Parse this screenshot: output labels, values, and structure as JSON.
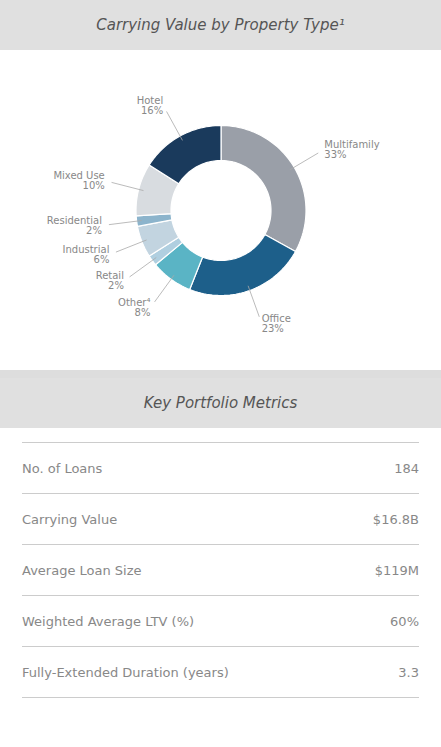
{
  "chart_data": [
    {
      "type": "pie",
      "title": "Carrying Value by Property Type¹",
      "categories": [
        "Multifamily",
        "Office",
        "Other⁴",
        "Retail",
        "Industrial",
        "Residential",
        "Mixed Use",
        "Hotel"
      ],
      "values": [
        33,
        23,
        8,
        2,
        6,
        2,
        10,
        16
      ],
      "value_labels": [
        "33%",
        "23%",
        "8%",
        "2%",
        "6%",
        "2%",
        "10%",
        "16%"
      ],
      "colors": [
        "#9a9fa8",
        "#1d5f8a",
        "#5ab4c5",
        "#b0cfe0",
        "#c2d4e0",
        "#8cb4cc",
        "#d8dce0",
        "#1a3a5c"
      ],
      "data_labels": true
    },
    {
      "type": "table",
      "title": "Key Portfolio Metrics",
      "categories": [
        "No. of Loans",
        "Carrying Value",
        "Average Loan Size",
        "Weighted Average LTV (%)",
        "Fully-Extended Duration (years)"
      ],
      "values": [
        "184",
        "$16.8B",
        "$119M",
        "60%",
        "3.3"
      ]
    }
  ]
}
